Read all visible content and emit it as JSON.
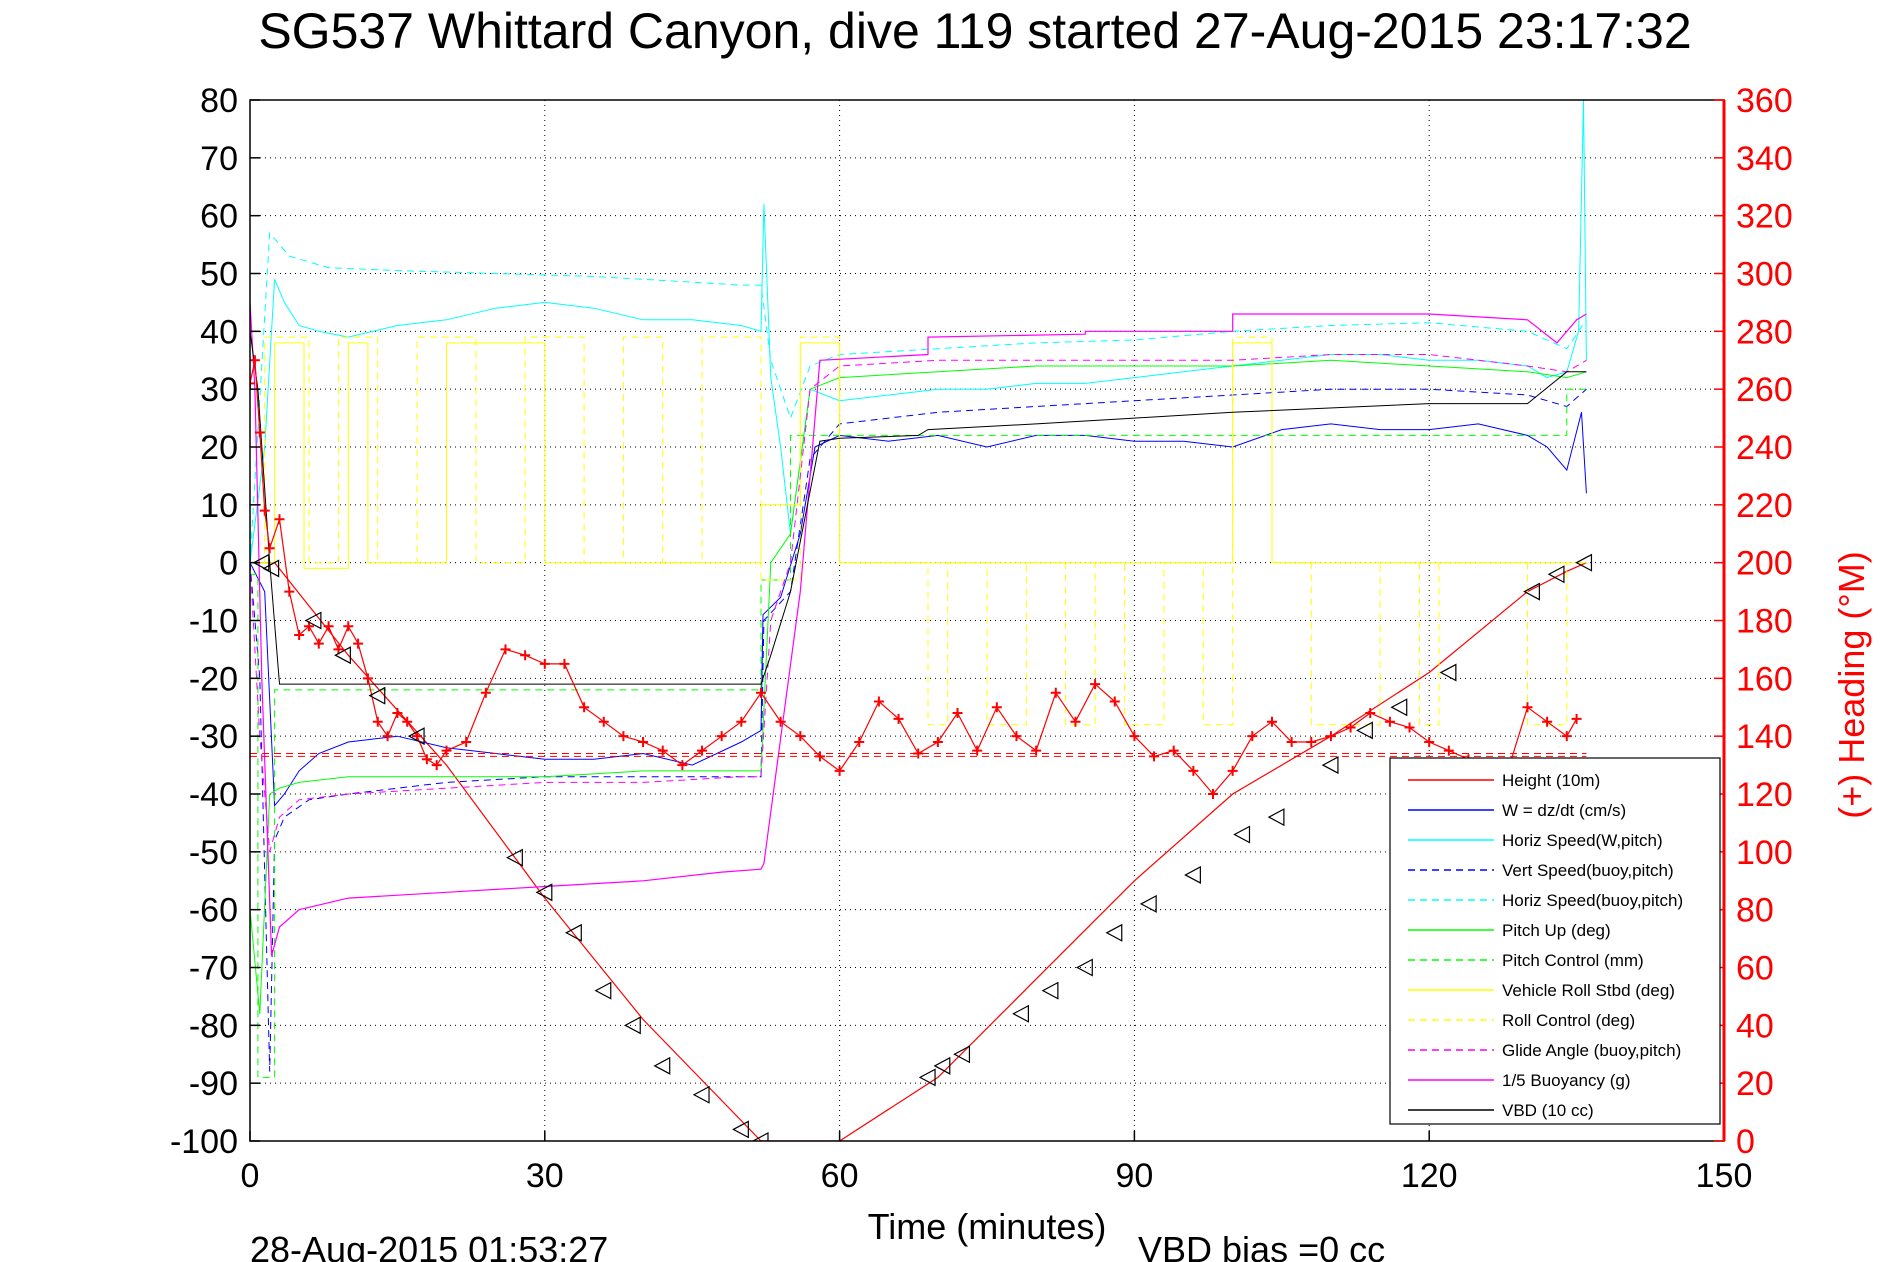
{
  "chart_data": {
    "type": "line",
    "title": "SG537 Whittard Canyon, dive 119 started 27-Aug-2015 23:17:32",
    "xlabel": "Time (minutes)",
    "ylabel_right": "(+) Heading (°M)",
    "footer_left": "28-Aug-2015 01:53:27",
    "footer_right": "VBD bias =0 cc",
    "xlim": [
      0,
      150
    ],
    "ylim": [
      -100,
      80
    ],
    "ylim_right": [
      0,
      360
    ],
    "xticks": [
      "0",
      "30",
      "60",
      "90",
      "120",
      "150"
    ],
    "yticks": [
      "80",
      "70",
      "60",
      "50",
      "40",
      "30",
      "20",
      "10",
      "0",
      "-10",
      "-20",
      "-30",
      "-40",
      "-50",
      "-60",
      "-70",
      "-80",
      "-90",
      "-100"
    ],
    "yticks_right": [
      "360",
      "340",
      "320",
      "300",
      "280",
      "260",
      "240",
      "220",
      "200",
      "180",
      "160",
      "140",
      "120",
      "100",
      "80",
      "60",
      "40",
      "20",
      "0"
    ],
    "grid": true,
    "legend_position": "bottom-right",
    "colors": {
      "axis": "#000000",
      "grid": "#000000",
      "heading": "#ff0000",
      "height": "#ff0000",
      "w": "#0000ff",
      "horiz_speed": "#00ffff",
      "pitch": "#00ff00",
      "roll": "#ffff00",
      "glide": "#ff00ff",
      "buoyancy": "#ff00ff",
      "vbd": "#000000"
    },
    "legend": [
      {
        "label": "Height (10m)",
        "color": "#ff0000",
        "dash": false
      },
      {
        "label": "W = dz/dt (cm/s)",
        "color": "#0000ff",
        "dash": false
      },
      {
        "label": "Horiz Speed(W,pitch)",
        "color": "#00ffff",
        "dash": false
      },
      {
        "label": "Vert Speed(buoy,pitch)",
        "color": "#0000ff",
        "dash": true
      },
      {
        "label": "Horiz Speed(buoy,pitch)",
        "color": "#00ffff",
        "dash": true
      },
      {
        "label": "Pitch Up (deg)",
        "color": "#00ff00",
        "dash": false
      },
      {
        "label": "Pitch Control (mm)",
        "color": "#00ff00",
        "dash": true
      },
      {
        "label": "Vehicle Roll Stbd (deg)",
        "color": "#ffff00",
        "dash": false
      },
      {
        "label": "Roll Control (deg)",
        "color": "#ffff00",
        "dash": true
      },
      {
        "label": "Glide Angle (buoy,pitch)",
        "color": "#ff00ff",
        "dash": true
      },
      {
        "label": "1/5 Buoyancy (g)",
        "color": "#ff00ff",
        "dash": false
      },
      {
        "label": "VBD (10 cc)",
        "color": "#000000",
        "dash": false
      }
    ],
    "series": [
      {
        "name": "Height (10m)",
        "axis": "left",
        "color": "#ff0000",
        "dash": false,
        "width": 1.2,
        "x": [
          0,
          2.5,
          10,
          20,
          30,
          40,
          48,
          52,
          53,
          56,
          60,
          70,
          80,
          90,
          100,
          110,
          120,
          130,
          134,
          136
        ],
        "y": [
          0,
          0,
          -16,
          -35,
          -58,
          -79,
          -93,
          -100,
          -100,
          -100,
          -100,
          -89,
          -72,
          -55,
          -40,
          -30,
          -19,
          -5,
          -1.5,
          0
        ]
      },
      {
        "name": "W = dz/dt (cm/s)",
        "axis": "left",
        "color": "#0000ff",
        "dash": false,
        "width": 1,
        "x": [
          0,
          1.5,
          2.5,
          3.5,
          5,
          7,
          10,
          15,
          20,
          25,
          30,
          35,
          40,
          45,
          50,
          52,
          52.2,
          54,
          56,
          57.5,
          60,
          65,
          70,
          75,
          80,
          85,
          90,
          95,
          100,
          105,
          110,
          115,
          120,
          125,
          130,
          132,
          134,
          135.5,
          136
        ],
        "y": [
          0,
          -5,
          -42,
          -40,
          -36,
          -33,
          -31,
          -30,
          -32,
          -33,
          -34,
          -34,
          -33,
          -35,
          -31,
          -29,
          -9,
          -6,
          5,
          20,
          22,
          21,
          22,
          20,
          22,
          22,
          21,
          21,
          20,
          23,
          24,
          23,
          23,
          24,
          22,
          20,
          16,
          26,
          12
        ]
      },
      {
        "name": "Vert Speed(buoy,pitch)",
        "axis": "left",
        "color": "#0000ff",
        "dash": true,
        "width": 1,
        "x": [
          0,
          1,
          2,
          2.5,
          3.5,
          6,
          10,
          20,
          30,
          40,
          50,
          52,
          52.3,
          55,
          57,
          60,
          70,
          80,
          90,
          100,
          110,
          120,
          130,
          134,
          136
        ],
        "y": [
          0,
          -20,
          -88,
          -48,
          -44,
          -41,
          -40,
          -38,
          -37,
          -37,
          -37,
          -37,
          -10,
          -5,
          18,
          24,
          26,
          27,
          28,
          29,
          30,
          30,
          29,
          27,
          30
        ]
      },
      {
        "name": "Horiz Speed(W,pitch)",
        "axis": "left",
        "color": "#00ffff",
        "dash": false,
        "width": 1,
        "x": [
          0,
          1.5,
          2.5,
          3.5,
          5,
          7,
          10,
          15,
          20,
          25,
          30,
          35,
          40,
          45,
          50,
          52,
          52.3,
          53,
          54,
          55,
          57,
          60,
          65,
          70,
          75,
          80,
          85,
          90,
          95,
          100,
          105,
          110,
          115,
          120,
          125,
          130,
          132,
          134,
          135.2,
          135.7,
          136
        ],
        "y": [
          0,
          20,
          49,
          45,
          41,
          40,
          39,
          41,
          42,
          44,
          45,
          44,
          42,
          42,
          41,
          40,
          62,
          32,
          20,
          5,
          30,
          28,
          29,
          30,
          30,
          31,
          31,
          32,
          33,
          34,
          35,
          36,
          36,
          35,
          35,
          34,
          32,
          33,
          40,
          80,
          35
        ]
      },
      {
        "name": "Horiz Speed(buoy,pitch)",
        "axis": "left",
        "color": "#00ffff",
        "dash": true,
        "width": 1,
        "x": [
          0,
          2,
          4,
          8,
          15,
          25,
          35,
          45,
          50,
          52,
          53,
          55,
          57,
          60,
          70,
          80,
          90,
          100,
          110,
          120,
          130,
          134,
          136
        ],
        "y": [
          0,
          57,
          53,
          51,
          50.5,
          50,
          49.5,
          48.5,
          48,
          48,
          35,
          25,
          34,
          36,
          37,
          38,
          38.5,
          40,
          41,
          41.5,
          40,
          37,
          42
        ]
      },
      {
        "name": "Pitch Up (deg)",
        "axis": "left",
        "color": "#00ff00",
        "dash": false,
        "width": 1,
        "x": [
          0,
          1,
          2,
          3,
          5,
          10,
          20,
          30,
          40,
          50,
          52,
          53,
          55,
          57,
          60,
          70,
          80,
          90,
          100,
          110,
          120,
          130,
          134,
          136
        ],
        "y": [
          -60,
          -78,
          -40,
          -39,
          -38,
          -37,
          -37,
          -37,
          -36,
          -36,
          -36,
          0,
          5,
          30,
          32,
          33,
          34,
          34,
          34,
          35,
          34,
          33,
          32,
          33
        ]
      },
      {
        "name": "Pitch Control (mm)",
        "axis": "left",
        "color": "#00ff00",
        "dash": true,
        "width": 1,
        "x": [
          0,
          0.8,
          0.8,
          2.5,
          2.5,
          52,
          52,
          55,
          55,
          134,
          134,
          136
        ],
        "y": [
          -2,
          -2,
          -89,
          -89,
          -22,
          -22,
          -3,
          -3,
          22,
          22,
          30,
          30
        ]
      },
      {
        "name": "Vehicle Roll Stbd (deg)",
        "axis": "left",
        "color": "#ffff00",
        "dash": false,
        "width": 1,
        "x": [
          0,
          2.5,
          2.5,
          5.5,
          5.5,
          10,
          10,
          12,
          12,
          20,
          20,
          30,
          30,
          52,
          52,
          56,
          56,
          60,
          60,
          100,
          100,
          104,
          104,
          136
        ],
        "y": [
          0,
          0,
          38,
          38,
          -1,
          -1,
          38,
          38,
          0,
          0,
          38,
          38,
          0,
          0,
          10,
          10,
          38,
          38,
          0,
          0,
          38,
          38,
          0,
          0
        ]
      },
      {
        "name": "Roll Control (deg)",
        "axis": "left",
        "color": "#ffff00",
        "dash": true,
        "width": 1,
        "x": [
          0,
          1.5,
          1.5,
          6,
          6,
          9,
          9,
          13,
          13,
          17,
          17,
          23,
          23,
          28,
          28,
          34,
          34,
          38,
          38,
          42,
          42,
          46,
          46,
          52,
          52,
          56,
          56,
          60,
          60,
          69,
          69,
          71,
          71,
          75,
          75,
          79,
          79,
          83,
          83,
          86,
          86,
          89,
          89,
          93,
          93,
          97,
          97,
          100,
          100,
          104,
          104,
          108,
          108,
          115,
          115,
          119,
          119,
          121,
          121,
          130,
          130,
          134,
          134,
          136
        ],
        "y": [
          0,
          0,
          39,
          39,
          0,
          0,
          39,
          39,
          0,
          0,
          39,
          39,
          0,
          0,
          39,
          39,
          0,
          0,
          39,
          39,
          0,
          0,
          39,
          39,
          -3,
          -3,
          39,
          39,
          0,
          0,
          -28,
          -28,
          0,
          0,
          -28,
          -28,
          0,
          0,
          -28,
          -28,
          0,
          0,
          -28,
          -28,
          0,
          0,
          -28,
          -28,
          39,
          39,
          0,
          0,
          -28,
          -28,
          0,
          0,
          -28,
          -28,
          0,
          0,
          -28,
          -28,
          0,
          0
        ]
      },
      {
        "name": "Glide Angle (buoy,pitch)",
        "axis": "left",
        "color": "#ff00ff",
        "dash": true,
        "width": 1,
        "x": [
          0,
          1,
          2,
          3,
          5,
          10,
          20,
          30,
          40,
          50,
          52,
          53,
          55,
          57,
          60,
          70,
          80,
          90,
          100,
          110,
          120,
          130,
          134,
          136
        ],
        "y": [
          0,
          -30,
          -50,
          -44,
          -41,
          -40,
          -39,
          -38,
          -38,
          -37,
          -37,
          -10,
          0,
          30,
          34,
          35,
          35,
          35,
          35,
          36,
          36,
          34,
          33,
          35
        ]
      },
      {
        "name": "1/5 Buoyancy (g)",
        "axis": "left",
        "color": "#ff00ff",
        "dash": false,
        "width": 1.2,
        "x": [
          0,
          0.5,
          1.2,
          2.2,
          3,
          5,
          10,
          20,
          30,
          40,
          48,
          52,
          52.3,
          56,
          58,
          69,
          69,
          85,
          85,
          100,
          100,
          120,
          130,
          133,
          135,
          136
        ],
        "y": [
          45,
          30,
          -20,
          -68,
          -63,
          -60,
          -58,
          -57,
          -56,
          -55,
          -53.5,
          -53,
          -52,
          -5,
          35,
          36,
          39,
          39.5,
          40,
          40,
          43,
          43,
          42,
          38,
          42,
          43
        ]
      },
      {
        "name": "VBD (10 cc)",
        "axis": "left",
        "color": "#000000",
        "dash": false,
        "width": 1,
        "x": [
          0,
          0.8,
          2,
          3,
          10,
          30,
          52,
          53,
          55,
          58,
          60,
          68,
          69,
          80,
          90,
          100,
          120,
          130,
          134,
          136
        ],
        "y": [
          40,
          30,
          0,
          -21,
          -21,
          -21,
          -21,
          -16,
          -5,
          21,
          21.5,
          22,
          23,
          24,
          25,
          26,
          27.5,
          27.5,
          33,
          33
        ]
      },
      {
        "name": "Heading",
        "axis": "right",
        "color": "#ff0000",
        "dash": false,
        "marker": "plus",
        "width": 1.2,
        "x": [
          0,
          0.5,
          1,
          1.5,
          2,
          3,
          4,
          5,
          6,
          7,
          8,
          9,
          10,
          11,
          12,
          13,
          14,
          15,
          16,
          17,
          18,
          19,
          20,
          22,
          24,
          26,
          28,
          30,
          32,
          34,
          36,
          38,
          40,
          42,
          44,
          46,
          48,
          50,
          52,
          54,
          56,
          58,
          60,
          62,
          64,
          66,
          68,
          70,
          72,
          74,
          76,
          78,
          80,
          82,
          84,
          86,
          88,
          90,
          92,
          94,
          96,
          98,
          100,
          102,
          104,
          106,
          108,
          110,
          112,
          114,
          116,
          118,
          120,
          122,
          124,
          126,
          128,
          130,
          132,
          134,
          135
        ],
        "y": [
          262,
          270,
          245,
          218,
          205,
          215,
          190,
          175,
          178,
          172,
          178,
          170,
          178,
          172,
          160,
          145,
          140,
          148,
          145,
          140,
          132,
          130,
          135,
          138,
          155,
          170,
          168,
          165,
          165,
          150,
          145,
          140,
          138,
          135,
          130,
          135,
          140,
          145,
          155,
          145,
          140,
          133,
          128,
          138,
          152,
          146,
          134,
          138,
          148,
          135,
          150,
          140,
          135,
          155,
          145,
          158,
          152,
          140,
          133,
          135,
          128,
          120,
          128,
          140,
          145,
          138,
          138,
          140,
          143,
          148,
          145,
          143,
          138,
          135,
          132,
          130,
          128,
          150,
          145,
          140,
          146
        ]
      },
      {
        "name": "Heading mean",
        "axis": "right",
        "color": "#ff0000",
        "dash": true,
        "width": 1,
        "x": [
          0,
          136
        ],
        "y": [
          134,
          134
        ]
      },
      {
        "name": "Glide mean",
        "axis": "left",
        "color": "#ff0000",
        "dash": true,
        "width": 1,
        "x": [
          0,
          136
        ],
        "y": [
          -33.5,
          -33.5
        ]
      }
    ],
    "markers_height": {
      "x": [
        1.2,
        2.2,
        6.5,
        9.5,
        13,
        17,
        27,
        30,
        33,
        36,
        39,
        42,
        46,
        50,
        52,
        69,
        70.5,
        72.5,
        78.5,
        81.5,
        85,
        88,
        91.5,
        96,
        101,
        104.5,
        110,
        113.5,
        117,
        122,
        130.5,
        133,
        135.8
      ],
      "y": [
        0,
        -1,
        -10,
        -16,
        -23,
        -30,
        -51,
        -57,
        -64,
        -74,
        -80,
        -87,
        -92,
        -98,
        -100,
        -89,
        -87,
        -85,
        -78,
        -74,
        -70,
        -64,
        -59,
        -54,
        -47,
        -44,
        -35,
        -29,
        -25,
        -19,
        -5,
        -2,
        0
      ]
    }
  }
}
